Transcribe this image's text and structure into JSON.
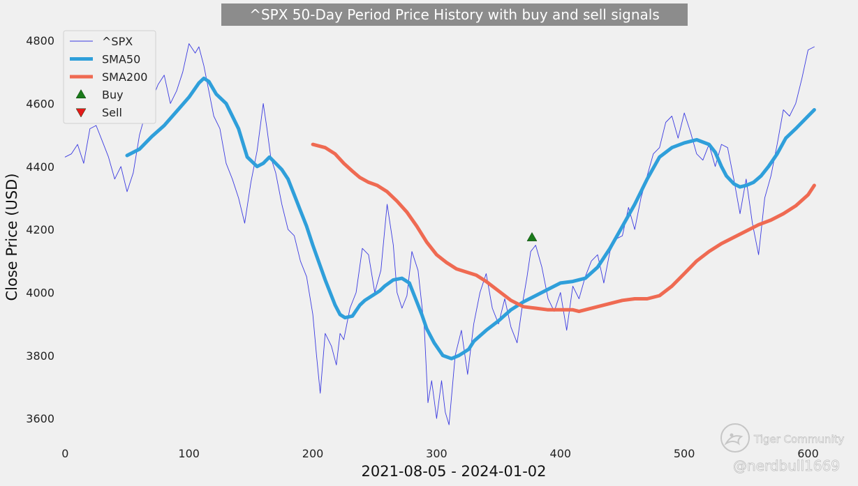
{
  "chart_data": {
    "type": "line",
    "title": "^SPX 50-Day Period Price History with buy and sell signals",
    "xlabel": "2021-08-05 - 2024-01-02",
    "ylabel": "Close Price (USD)",
    "xlim": [
      -25,
      620
    ],
    "ylim": [
      3545,
      4840
    ],
    "xticks": [
      0,
      100,
      200,
      300,
      400,
      500,
      600
    ],
    "yticks": [
      3600,
      3800,
      4000,
      4200,
      4400,
      4600,
      4800
    ],
    "grid": false,
    "legend_position": "top-left",
    "series": [
      {
        "name": "^SPX",
        "style": "thin-line",
        "color": "#3a3ae0",
        "x": [
          0,
          5,
          10,
          15,
          20,
          25,
          30,
          35,
          40,
          45,
          50,
          55,
          60,
          65,
          70,
          75,
          80,
          85,
          90,
          95,
          100,
          105,
          108,
          112,
          116,
          120,
          125,
          130,
          135,
          140,
          145,
          150,
          155,
          160,
          163,
          166,
          170,
          175,
          180,
          185,
          190,
          195,
          200,
          203,
          206,
          210,
          215,
          219,
          222,
          225,
          230,
          235,
          240,
          245,
          250,
          255,
          260,
          265,
          268,
          272,
          276,
          280,
          285,
          290,
          293,
          296,
          300,
          304,
          307,
          310,
          315,
          320,
          325,
          330,
          335,
          340,
          345,
          350,
          355,
          360,
          365,
          370,
          373,
          376,
          380,
          385,
          390,
          395,
          400,
          405,
          410,
          415,
          420,
          425,
          430,
          435,
          440,
          445,
          450,
          455,
          460,
          465,
          470,
          475,
          480,
          485,
          490,
          495,
          500,
          505,
          510,
          515,
          520,
          525,
          530,
          535,
          540,
          545,
          550,
          555,
          560,
          565,
          570,
          575,
          580,
          585,
          590,
          595,
          600,
          605
        ],
        "values": [
          4430,
          4440,
          4470,
          4410,
          4520,
          4530,
          4480,
          4430,
          4360,
          4400,
          4320,
          4380,
          4500,
          4570,
          4610,
          4660,
          4690,
          4600,
          4640,
          4700,
          4790,
          4760,
          4780,
          4720,
          4640,
          4560,
          4520,
          4410,
          4360,
          4300,
          4220,
          4350,
          4450,
          4600,
          4520,
          4430,
          4380,
          4280,
          4200,
          4180,
          4100,
          4050,
          3930,
          3800,
          3680,
          3870,
          3830,
          3770,
          3870,
          3850,
          3950,
          4000,
          4140,
          4120,
          4000,
          4070,
          4280,
          4150,
          4000,
          3950,
          3990,
          4130,
          4070,
          3890,
          3650,
          3720,
          3600,
          3720,
          3620,
          3580,
          3800,
          3880,
          3740,
          3900,
          4000,
          4060,
          3950,
          3900,
          3980,
          3890,
          3840,
          3980,
          4050,
          4130,
          4150,
          4080,
          3980,
          3940,
          4000,
          3880,
          4020,
          3980,
          4050,
          4100,
          4120,
          4030,
          4130,
          4170,
          4180,
          4270,
          4200,
          4300,
          4370,
          4440,
          4460,
          4540,
          4560,
          4490,
          4570,
          4510,
          4440,
          4420,
          4470,
          4400,
          4470,
          4460,
          4360,
          4250,
          4360,
          4220,
          4120,
          4300,
          4370,
          4470,
          4580,
          4560,
          4600,
          4680,
          4770,
          4780
        ]
      },
      {
        "name": "SMA50",
        "style": "thick-line",
        "color": "#2f9fda",
        "x": [
          50,
          60,
          70,
          80,
          90,
          100,
          108,
          112,
          116,
          122,
          130,
          140,
          147,
          155,
          160,
          165,
          170,
          175,
          180,
          185,
          190,
          195,
          200,
          210,
          218,
          222,
          226,
          232,
          238,
          242,
          248,
          254,
          258,
          265,
          272,
          278,
          282,
          288,
          292,
          298,
          305,
          312,
          318,
          322,
          326,
          330,
          340,
          350,
          360,
          370,
          380,
          390,
          400,
          410,
          420,
          430,
          440,
          450,
          460,
          470,
          480,
          490,
          500,
          510,
          520,
          525,
          530,
          534,
          540,
          545,
          550,
          556,
          562,
          568,
          575,
          582,
          590,
          600,
          605
        ],
        "values": [
          4435,
          4455,
          4495,
          4530,
          4575,
          4620,
          4665,
          4680,
          4670,
          4630,
          4600,
          4520,
          4430,
          4400,
          4410,
          4430,
          4410,
          4390,
          4360,
          4310,
          4260,
          4210,
          4150,
          4040,
          3960,
          3930,
          3920,
          3925,
          3960,
          3975,
          3990,
          4005,
          4020,
          4040,
          4045,
          4030,
          3990,
          3930,
          3885,
          3840,
          3800,
          3790,
          3800,
          3810,
          3820,
          3845,
          3880,
          3910,
          3945,
          3970,
          3990,
          4010,
          4030,
          4035,
          4045,
          4080,
          4140,
          4210,
          4280,
          4360,
          4430,
          4460,
          4475,
          4485,
          4470,
          4445,
          4400,
          4370,
          4345,
          4335,
          4340,
          4350,
          4370,
          4400,
          4440,
          4490,
          4520,
          4560,
          4580
        ]
      },
      {
        "name": "SMA200",
        "style": "thick-line",
        "color": "#ef6a52",
        "x": [
          200,
          210,
          218,
          225,
          232,
          238,
          245,
          252,
          260,
          268,
          276,
          284,
          292,
          300,
          308,
          316,
          324,
          332,
          340,
          350,
          360,
          370,
          380,
          390,
          400,
          410,
          415,
          420,
          430,
          440,
          450,
          460,
          470,
          480,
          490,
          500,
          510,
          520,
          530,
          540,
          550,
          560,
          570,
          580,
          590,
          600,
          605
        ],
        "values": [
          4470,
          4460,
          4440,
          4410,
          4385,
          4365,
          4350,
          4340,
          4320,
          4290,
          4255,
          4210,
          4160,
          4120,
          4095,
          4075,
          4065,
          4055,
          4035,
          4005,
          3975,
          3955,
          3950,
          3945,
          3945,
          3945,
          3940,
          3945,
          3955,
          3965,
          3975,
          3980,
          3980,
          3990,
          4020,
          4060,
          4100,
          4130,
          4155,
          4175,
          4195,
          4215,
          4230,
          4250,
          4275,
          4310,
          4340
        ]
      }
    ],
    "signals": {
      "buy": {
        "name": "Buy",
        "marker": "triangle-up",
        "color": "#1a7a1a",
        "points": [
          {
            "x": 377,
            "y": 4175
          }
        ]
      },
      "sell": {
        "name": "Sell",
        "marker": "triangle-down",
        "color": "#e31a1a",
        "points": []
      }
    }
  },
  "legend": {
    "items": [
      {
        "label": "^SPX",
        "kind": "thin-line",
        "color": "#3a3ae0"
      },
      {
        "label": "SMA50",
        "kind": "thick-line",
        "color": "#2f9fda"
      },
      {
        "label": "SMA200",
        "kind": "thick-line",
        "color": "#ef6a52"
      },
      {
        "label": "Buy",
        "kind": "triangle-up",
        "color": "#1a7a1a"
      },
      {
        "label": "Sell",
        "kind": "triangle-down",
        "color": "#e31a1a"
      }
    ]
  },
  "watermark": {
    "brand": "Tiger Community",
    "handle": "@nerdbull1669"
  }
}
